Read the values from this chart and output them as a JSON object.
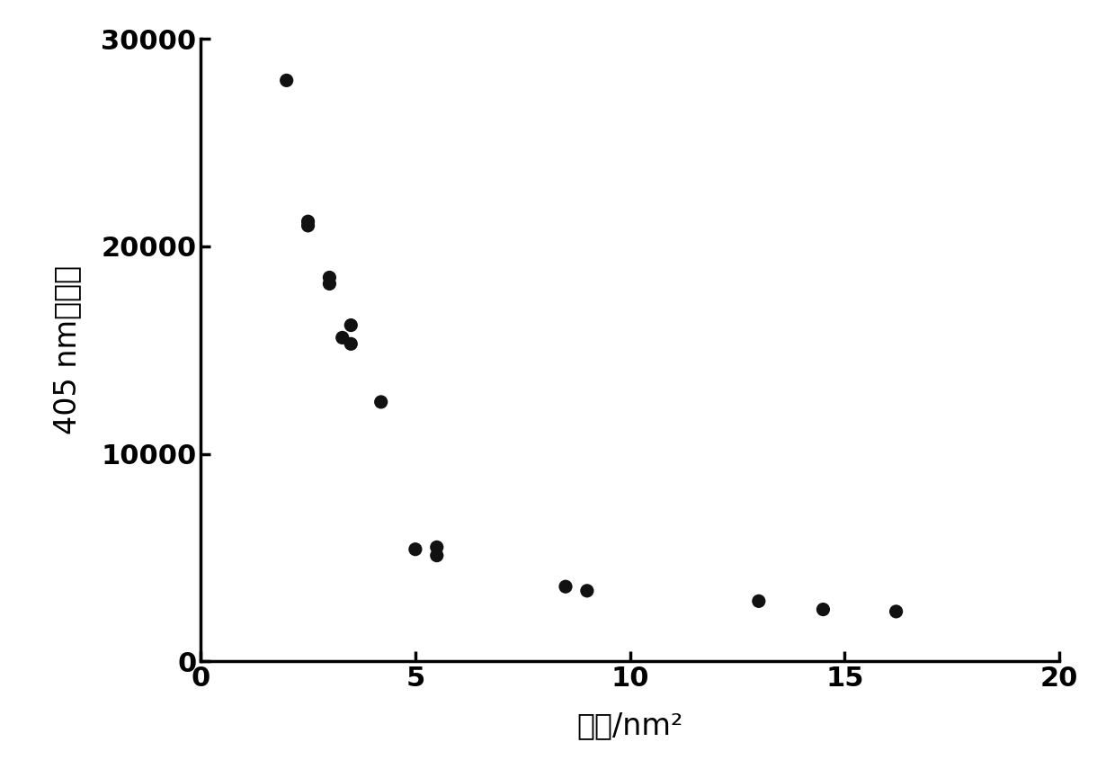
{
  "x": [
    2.0,
    2.5,
    2.5,
    3.0,
    3.0,
    3.3,
    3.5,
    3.5,
    4.2,
    5.0,
    5.5,
    5.5,
    8.5,
    9.0,
    13.0,
    14.5,
    16.2
  ],
  "y": [
    28000,
    21200,
    21000,
    18500,
    18200,
    15600,
    15300,
    16200,
    12500,
    5400,
    5100,
    5500,
    3600,
    3400,
    2900,
    2500,
    2400
  ],
  "xlabel": "分子/nm²",
  "ylabel": "405 nm处荧光",
  "xlim": [
    0,
    20
  ],
  "ylim": [
    0,
    30000
  ],
  "xticks": [
    0,
    5,
    10,
    15,
    20
  ],
  "yticks": [
    0,
    10000,
    20000,
    30000
  ],
  "marker_color": "#111111",
  "marker_size": 120,
  "background_color": "#ffffff",
  "spine_linewidth": 2.5,
  "tick_labelsize": 22,
  "axis_labelsize": 24
}
